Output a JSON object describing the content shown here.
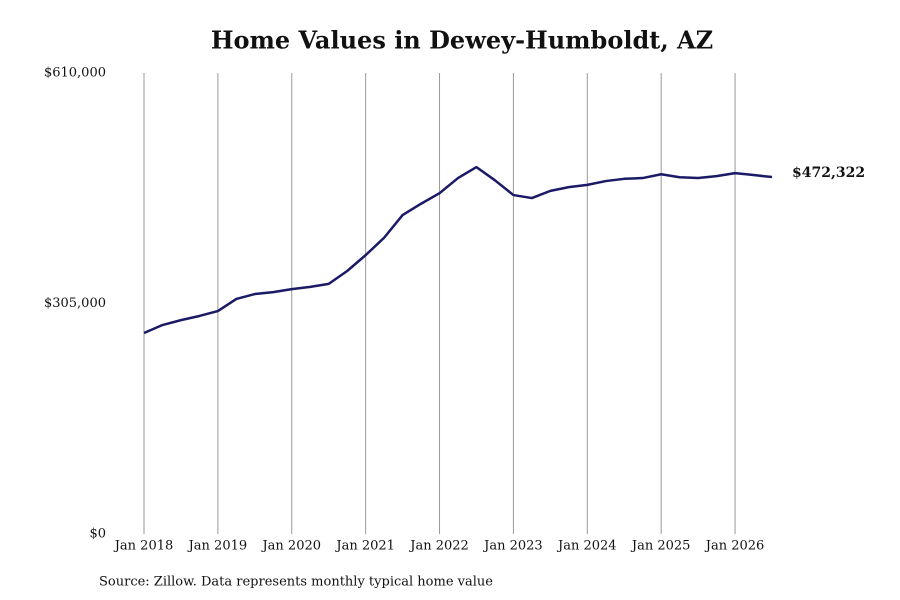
{
  "chart_data": {
    "type": "line",
    "title": "Home Values in Dewey-Humboldt, AZ",
    "source": "Source: Zillow. Data represents monthly typical home value",
    "color": "#1a1a66",
    "grid": true,
    "x": [
      "2018-01",
      "2018-04",
      "2018-07",
      "2018-10",
      "2019-01",
      "2019-04",
      "2019-07",
      "2019-10",
      "2020-01",
      "2020-04",
      "2020-07",
      "2020-10",
      "2021-01",
      "2021-04",
      "2021-07",
      "2021-10",
      "2022-01",
      "2022-04",
      "2022-07",
      "2022-10",
      "2023-01",
      "2023-04",
      "2023-07",
      "2023-10",
      "2024-01",
      "2024-04",
      "2024-07",
      "2024-10",
      "2025-01",
      "2025-04",
      "2025-07",
      "2025-10",
      "2026-01",
      "2026-04",
      "2026-07"
    ],
    "values": [
      266000,
      276500,
      283000,
      288500,
      295000,
      311000,
      317500,
      320000,
      324000,
      327000,
      331000,
      348000,
      369000,
      392000,
      422000,
      437000,
      451000,
      471000,
      485500,
      468000,
      448500,
      444500,
      454000,
      459000,
      462000,
      467000,
      470000,
      471000,
      476000,
      472000,
      471000,
      473500,
      477500,
      475000,
      472322
    ],
    "value_labels": [
      null,
      null,
      null,
      null,
      null,
      null,
      null,
      null,
      null,
      null,
      null,
      null,
      null,
      null,
      null,
      null,
      null,
      null,
      null,
      null,
      null,
      null,
      null,
      null,
      null,
      null,
      null,
      null,
      null,
      null,
      null,
      null,
      null,
      null,
      "$472,322"
    ],
    "xlim": [
      "2018-01",
      "2026-07"
    ],
    "xticks": [
      {
        "value": "2018-01",
        "label": "Jan 2018"
      },
      {
        "value": "2019-01",
        "label": "Jan 2019"
      },
      {
        "value": "2020-01",
        "label": "Jan 2020"
      },
      {
        "value": "2021-01",
        "label": "Jan 2021"
      },
      {
        "value": "2022-01",
        "label": "Jan 2022"
      },
      {
        "value": "2023-01",
        "label": "Jan 2023"
      },
      {
        "value": "2024-01",
        "label": "Jan 2024"
      },
      {
        "value": "2025-01",
        "label": "Jan 2025"
      },
      {
        "value": "2026-01",
        "label": "Jan 2026"
      }
    ],
    "ylim": [
      0,
      610000
    ],
    "yticks": [
      {
        "value": 0,
        "label": "$0"
      },
      {
        "value": 305000,
        "label": "$305,000"
      },
      {
        "value": 610000,
        "label": "$610,000"
      }
    ]
  }
}
